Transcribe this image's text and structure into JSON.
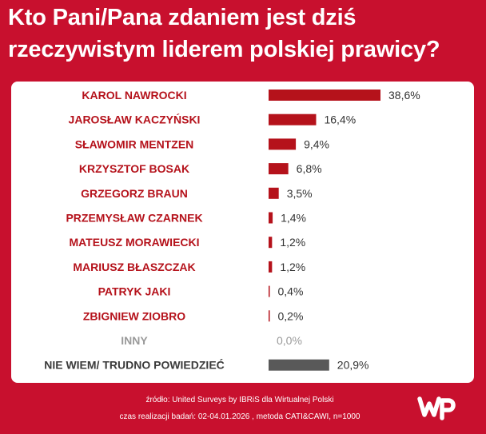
{
  "title": {
    "line1": "Kto Pani/Pana zdaniem jest dziś",
    "line2": "rzeczywistym liderem polskiej prawicy?"
  },
  "colors": {
    "background": "#c8102e",
    "bar": "#b5121b",
    "bar_undecided": "#595959",
    "label": "#b5121b",
    "label_muted": "#9a9a9a",
    "label_undecided": "#3a3a3a"
  },
  "chart_data": {
    "type": "bar",
    "orientation": "horizontal",
    "categories": [
      "KAROL NAWROCKI",
      "JAROSŁAW KACZYŃSKI",
      "SŁAWOMIR MENTZEN",
      "KRZYSZTOF BOSAK",
      "GRZEGORZ BRAUN",
      "PRZEMYSŁAW CZARNEK",
      "MATEUSZ MORAWIECKI",
      "MARIUSZ BŁASZCZAK",
      "PATRYK JAKI",
      "ZBIGNIEW ZIOBRO",
      "INNY",
      "NIE WIEM/ TRUDNO POWIEDZIEĆ"
    ],
    "values": [
      38.6,
      16.4,
      9.4,
      6.8,
      3.5,
      1.4,
      1.2,
      1.2,
      0.4,
      0.2,
      0.0,
      20.9
    ],
    "value_labels": [
      "38,6%",
      "16,4%",
      "9,4%",
      "6,8%",
      "3,5%",
      "1,4%",
      "1,2%",
      "1,2%",
      "0,4%",
      "0,2%",
      "0,0%",
      "20,9%"
    ],
    "styles": [
      "red",
      "red",
      "red",
      "red",
      "red",
      "red",
      "red",
      "red",
      "red",
      "red",
      "muted",
      "undecided"
    ],
    "xlim": [
      0,
      38.6
    ],
    "grid": false,
    "legend": "none"
  },
  "footer": {
    "source": "źródło: United Surveys by IBRiS dla Wirtualnej Polski",
    "method": "czas realizacji badań: 02-04.01.2026 , metoda CATI&CAWI, n=1000"
  },
  "logo": {
    "icon": "wp-logo-icon"
  }
}
